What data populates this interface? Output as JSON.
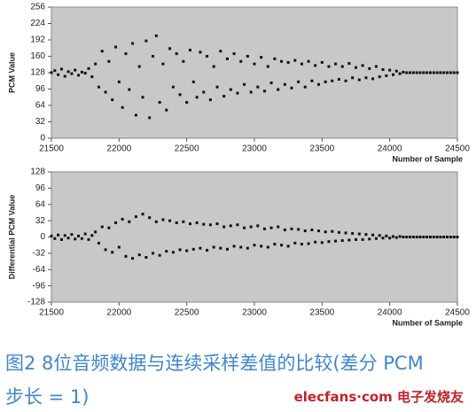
{
  "chart_data": [
    {
      "type": "scatter",
      "y_label": "PCM Value",
      "x_label": "Number of Sample",
      "color": "#111111",
      "xlim": [
        21500,
        24500
      ],
      "xticks": [
        21500,
        22000,
        22500,
        23000,
        23500,
        24000,
        24500
      ],
      "ylim": [
        0,
        256
      ],
      "yticks": [
        0,
        32,
        64,
        96,
        128,
        160,
        192,
        224,
        256
      ],
      "x": [
        21500,
        21525,
        21550,
        21575,
        21600,
        21625,
        21650,
        21675,
        21700,
        21725,
        21750,
        21775,
        21800,
        21825,
        21850,
        21875,
        21900,
        21925,
        21950,
        21975,
        22000,
        22025,
        22050,
        22075,
        22100,
        22125,
        22150,
        22175,
        22200,
        22225,
        22250,
        22275,
        22300,
        22325,
        22350,
        22375,
        22400,
        22425,
        22450,
        22475,
        22500,
        22525,
        22550,
        22575,
        22600,
        22625,
        22650,
        22675,
        22700,
        22725,
        22750,
        22775,
        22800,
        22825,
        22850,
        22875,
        22900,
        22925,
        22950,
        22975,
        23000,
        23025,
        23050,
        23075,
        23100,
        23125,
        23150,
        23175,
        23200,
        23225,
        23250,
        23275,
        23300,
        23325,
        23350,
        23375,
        23400,
        23425,
        23450,
        23475,
        23500,
        23525,
        23550,
        23575,
        23600,
        23625,
        23650,
        23675,
        23700,
        23725,
        23750,
        23775,
        23800,
        23825,
        23850,
        23875,
        23900,
        23925,
        23950,
        23975,
        24000,
        24025,
        24050,
        24075,
        24100,
        24125,
        24150,
        24175,
        24200,
        24225,
        24250,
        24275,
        24300,
        24325,
        24350,
        24375,
        24400,
        24425,
        24450,
        24475,
        24500
      ],
      "values": [
        128,
        132,
        124,
        135,
        121,
        130,
        126,
        133,
        123,
        129,
        127,
        136,
        120,
        145,
        100,
        170,
        90,
        150,
        75,
        178,
        110,
        60,
        165,
        95,
        185,
        45,
        140,
        80,
        190,
        40,
        160,
        200,
        70,
        145,
        55,
        175,
        100,
        165,
        85,
        150,
        70,
        172,
        110,
        80,
        168,
        90,
        160,
        75,
        140,
        100,
        170,
        82,
        155,
        95,
        165,
        88,
        150,
        105,
        160,
        90,
        145,
        100,
        158,
        92,
        140,
        108,
        155,
        95,
        150,
        105,
        148,
        98,
        152,
        110,
        145,
        100,
        150,
        112,
        142,
        105,
        148,
        110,
        140,
        112,
        145,
        115,
        140,
        112,
        146,
        118,
        138,
        114,
        142,
        118,
        136,
        116,
        140,
        120,
        134,
        122,
        133,
        124,
        131,
        126,
        129,
        128,
        128,
        128,
        128,
        128,
        128,
        128,
        128,
        128,
        128,
        128,
        128,
        128,
        128,
        128,
        128
      ]
    },
    {
      "type": "scatter",
      "y_label": "Differential PCM Value",
      "x_label": "Number of Sample",
      "color": "#111111",
      "xlim": [
        21500,
        24500
      ],
      "xticks": [
        21500,
        22000,
        22500,
        23000,
        23500,
        24000,
        24500
      ],
      "ylim": [
        -128,
        128
      ],
      "yticks": [
        -128,
        -96,
        -64,
        -32,
        0,
        32,
        64,
        96,
        128
      ],
      "x": [
        21500,
        21525,
        21550,
        21575,
        21600,
        21625,
        21650,
        21675,
        21700,
        21725,
        21750,
        21775,
        21800,
        21825,
        21850,
        21875,
        21900,
        21925,
        21950,
        21975,
        22000,
        22025,
        22050,
        22075,
        22100,
        22125,
        22150,
        22175,
        22200,
        22225,
        22250,
        22275,
        22300,
        22325,
        22350,
        22375,
        22400,
        22425,
        22450,
        22475,
        22500,
        22525,
        22550,
        22575,
        22600,
        22625,
        22650,
        22675,
        22700,
        22725,
        22750,
        22775,
        22800,
        22825,
        22850,
        22875,
        22900,
        22925,
        22950,
        22975,
        23000,
        23025,
        23050,
        23075,
        23100,
        23125,
        23150,
        23175,
        23200,
        23225,
        23250,
        23275,
        23300,
        23325,
        23350,
        23375,
        23400,
        23425,
        23450,
        23475,
        23500,
        23525,
        23550,
        23575,
        23600,
        23625,
        23650,
        23675,
        23700,
        23725,
        23750,
        23775,
        23800,
        23825,
        23850,
        23875,
        23900,
        23925,
        23950,
        23975,
        24000,
        24025,
        24050,
        24075,
        24100,
        24125,
        24150,
        24175,
        24200,
        24225,
        24250,
        24275,
        24300,
        24325,
        24350,
        24375,
        24400,
        24425,
        24450,
        24475,
        24500
      ],
      "values": [
        2,
        -3,
        4,
        -5,
        3,
        -2,
        5,
        -4,
        2,
        -3,
        6,
        -5,
        3,
        10,
        -12,
        20,
        -25,
        18,
        -30,
        28,
        -20,
        35,
        -38,
        30,
        -42,
        40,
        -35,
        45,
        -40,
        38,
        -32,
        30,
        -36,
        34,
        -28,
        32,
        -30,
        28,
        -25,
        30,
        -27,
        26,
        -24,
        28,
        -22,
        25,
        -26,
        24,
        -20,
        26,
        -22,
        20,
        -24,
        22,
        -18,
        24,
        -20,
        18,
        -22,
        20,
        -16,
        22,
        -18,
        16,
        -20,
        18,
        -14,
        20,
        -16,
        14,
        -18,
        16,
        -12,
        15,
        -14,
        12,
        -13,
        14,
        -10,
        12,
        -11,
        10,
        -9,
        11,
        -8,
        9,
        -7,
        8,
        -6,
        7,
        -5,
        6,
        -5,
        5,
        -4,
        4,
        -3,
        3,
        -2,
        2,
        -2,
        1,
        -1,
        1,
        0,
        0,
        0,
        0,
        0,
        0,
        0,
        0,
        0,
        0,
        0,
        0,
        0,
        0,
        0,
        0,
        0
      ]
    }
  ],
  "caption": {
    "line1": "图2 8位音频数据与连续采样差值的比较(差分 PCM",
    "line2": "步长 = 1)"
  },
  "watermark": "elecfans·com 电子发烧友"
}
